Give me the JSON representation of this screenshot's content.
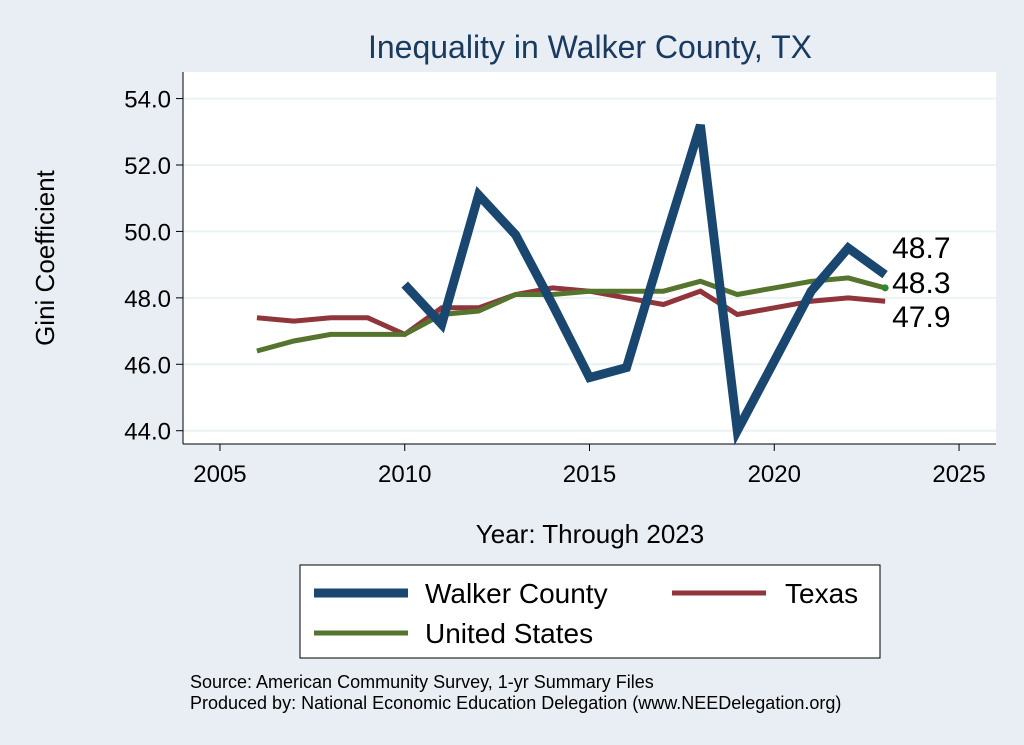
{
  "chart_data": {
    "type": "line",
    "title": "Inequality in Walker County, TX",
    "xlabel": "Year: Through 2023",
    "ylabel": "Gini Coefficient",
    "xlim": [
      2004,
      2026
    ],
    "ylim": [
      43.6,
      54.8
    ],
    "xticks": [
      "2005",
      "2010",
      "2015",
      "2020",
      "2025"
    ],
    "yticks": [
      "44.0",
      "46.0",
      "48.0",
      "50.0",
      "52.0",
      "54.0"
    ],
    "grid": true,
    "legend_position": "bottom",
    "series": [
      {
        "name": "Walker County",
        "color": "#1a476f",
        "x": [
          2010,
          2011,
          2012,
          2013,
          2014,
          2015,
          2016,
          2017,
          2018,
          2019,
          2020,
          2021,
          2022,
          2023
        ],
        "y": [
          48.4,
          47.2,
          51.1,
          49.9,
          47.8,
          45.6,
          45.9,
          49.6,
          53.2,
          44.0,
          46.1,
          48.2,
          49.5,
          48.7
        ],
        "end_label": "48.7"
      },
      {
        "name": "Texas",
        "color": "#90353b",
        "x": [
          2006,
          2007,
          2008,
          2009,
          2010,
          2011,
          2012,
          2013,
          2014,
          2015,
          2016,
          2017,
          2018,
          2019,
          2020,
          2021,
          2022,
          2023
        ],
        "y": [
          47.4,
          47.3,
          47.4,
          47.4,
          46.9,
          47.7,
          47.7,
          48.1,
          48.3,
          48.2,
          48.0,
          47.8,
          48.2,
          47.5,
          47.7,
          47.9,
          48.0,
          47.9
        ],
        "end_label": "47.9"
      },
      {
        "name": "United States",
        "color": "#55752f",
        "x": [
          2006,
          2007,
          2008,
          2009,
          2010,
          2011,
          2012,
          2013,
          2014,
          2015,
          2016,
          2017,
          2018,
          2019,
          2020,
          2021,
          2022,
          2023
        ],
        "y": [
          46.4,
          46.7,
          46.9,
          46.9,
          46.9,
          47.5,
          47.6,
          48.1,
          48.1,
          48.2,
          48.2,
          48.2,
          48.5,
          48.1,
          48.3,
          48.5,
          48.6,
          48.3
        ],
        "end_label": "48.3"
      }
    ],
    "source_lines": [
      "Source: American Community Survey, 1-yr Summary Files",
      "Produced by: National Economic Education Delegation (www.NEEDelegation.org)"
    ]
  }
}
